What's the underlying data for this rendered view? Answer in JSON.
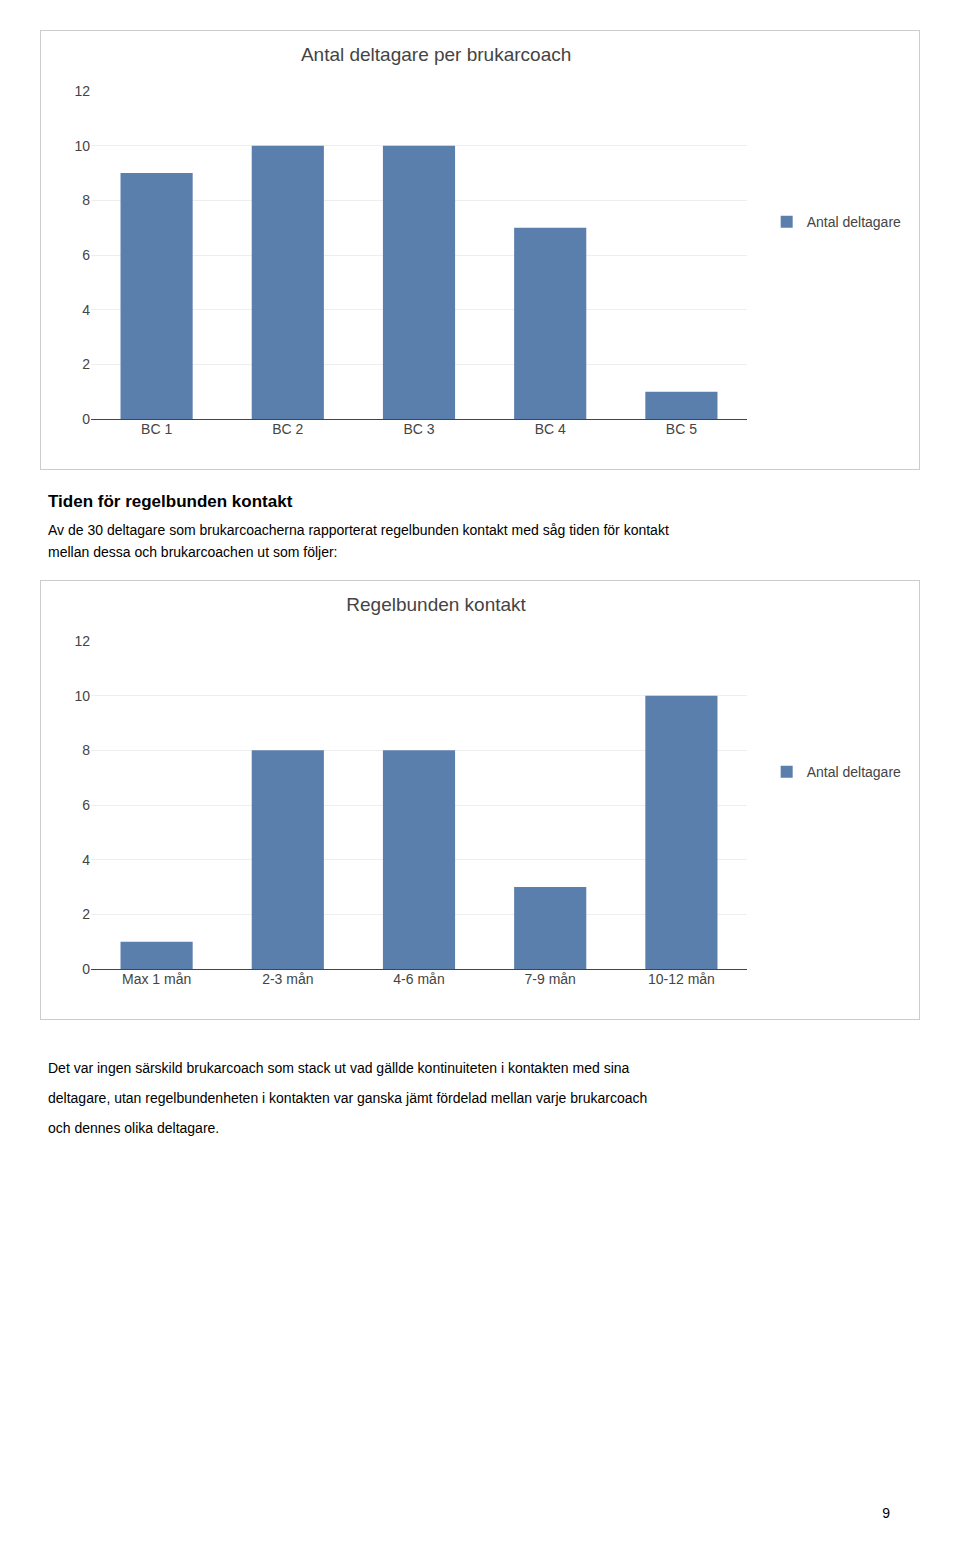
{
  "chart_data": [
    {
      "type": "bar",
      "title": "Antal deltagare per brukarcoach",
      "categories": [
        "BC 1",
        "BC 2",
        "BC 3",
        "BC 4",
        "BC 5"
      ],
      "series": [
        {
          "name": "Antal deltagare",
          "color": "#5b7fad",
          "values": [
            9,
            10,
            10,
            7,
            1
          ]
        }
      ],
      "ylim": [
        0,
        12
      ],
      "yticks": [
        0,
        2,
        4,
        6,
        8,
        10,
        12
      ],
      "grid": true,
      "legend": "right"
    },
    {
      "type": "bar",
      "title": "Regelbunden kontakt",
      "categories": [
        "Max 1 mån",
        "2-3 mån",
        "4-6 mån",
        "7-9 mån",
        "10-12 mån"
      ],
      "series": [
        {
          "name": "Antal deltagare",
          "color": "#5b7fad",
          "values": [
            1,
            8,
            8,
            3,
            10
          ]
        }
      ],
      "ylim": [
        0,
        12
      ],
      "yticks": [
        0,
        2,
        4,
        6,
        8,
        10,
        12
      ],
      "grid": true,
      "legend": "right"
    }
  ],
  "heading": "Tiden för regelbunden kontakt",
  "text": [
    "Av de 30 deltagare som brukarcoacherna rapporterat regelbunden kontakt med såg tiden för kontakt",
    "mellan dessa och brukarcoachen ut som följer:"
  ],
  "footer": [
    "Det var ingen särskild brukarcoach som stack ut vad gällde kontinuiteten i kontakten med sina",
    "deltagare, utan regelbundenheten i kontakten var ganska jämt fördelad mellan varje brukarcoach",
    "och dennes olika deltagare."
  ],
  "page_number": "9"
}
